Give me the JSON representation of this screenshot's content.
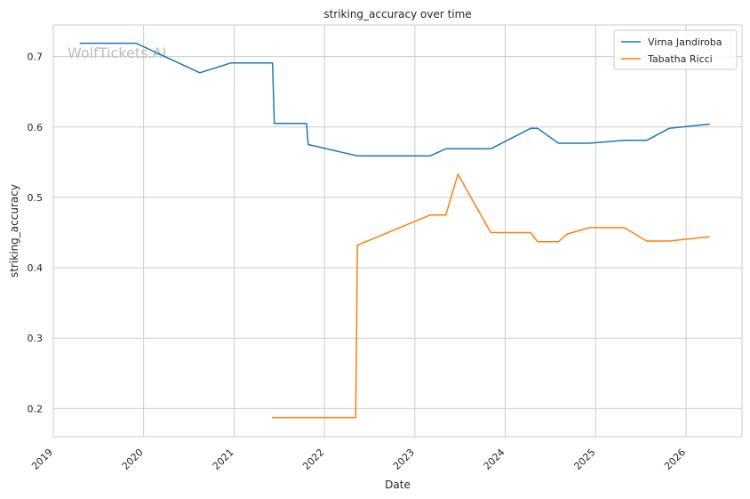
{
  "chart_data": {
    "type": "line",
    "title": "striking_accuracy over time",
    "xlabel": "Date",
    "ylabel": "striking_accuracy",
    "watermark": "WolfTickets.AI",
    "grid": true,
    "legend_position": "top-right",
    "x_ticks": [
      "2019",
      "2020",
      "2021",
      "2022",
      "2023",
      "2024",
      "2025",
      "2026"
    ],
    "y_ticks": [
      "0.2",
      "0.3",
      "0.4",
      "0.5",
      "0.6",
      "0.7"
    ],
    "xlim": [
      "2019-01-01",
      "2026-08-15"
    ],
    "ylim": [
      0.16,
      0.745
    ],
    "series": [
      {
        "name": "Virna Jandiroba",
        "color": "#1f77b4",
        "points": [
          [
            "2019-04-20",
            0.719
          ],
          [
            "2019-12-01",
            0.719
          ],
          [
            "2020-08-15",
            0.677
          ],
          [
            "2020-12-20",
            0.691
          ],
          [
            "2021-06-05",
            0.691
          ],
          [
            "2021-06-12",
            0.605
          ],
          [
            "2021-10-20",
            0.605
          ],
          [
            "2021-10-27",
            0.575
          ],
          [
            "2022-05-14",
            0.559
          ],
          [
            "2023-03-04",
            0.559
          ],
          [
            "2023-05-06",
            0.569
          ],
          [
            "2023-11-04",
            0.569
          ],
          [
            "2024-04-13",
            0.598
          ],
          [
            "2024-05-11",
            0.598
          ],
          [
            "2024-08-03",
            0.577
          ],
          [
            "2024-12-07",
            0.577
          ],
          [
            "2025-04-26",
            0.581
          ],
          [
            "2025-07-26",
            0.581
          ],
          [
            "2025-10-25",
            0.598
          ],
          [
            "2026-04-04",
            0.604
          ]
        ]
      },
      {
        "name": "Tabatha Ricci",
        "color": "#ff7f0e",
        "points": [
          [
            "2021-06-05",
            0.187
          ],
          [
            "2022-05-07",
            0.187
          ],
          [
            "2022-05-14",
            0.432
          ],
          [
            "2023-03-04",
            0.475
          ],
          [
            "2023-05-06",
            0.475
          ],
          [
            "2023-06-24",
            0.533
          ],
          [
            "2023-11-04",
            0.45
          ],
          [
            "2024-04-13",
            0.45
          ],
          [
            "2024-05-11",
            0.437
          ],
          [
            "2024-08-03",
            0.437
          ],
          [
            "2024-09-07",
            0.448
          ],
          [
            "2024-12-07",
            0.457
          ],
          [
            "2025-04-26",
            0.457
          ],
          [
            "2025-07-26",
            0.438
          ],
          [
            "2025-10-25",
            0.438
          ],
          [
            "2026-04-04",
            0.444
          ]
        ]
      }
    ]
  }
}
